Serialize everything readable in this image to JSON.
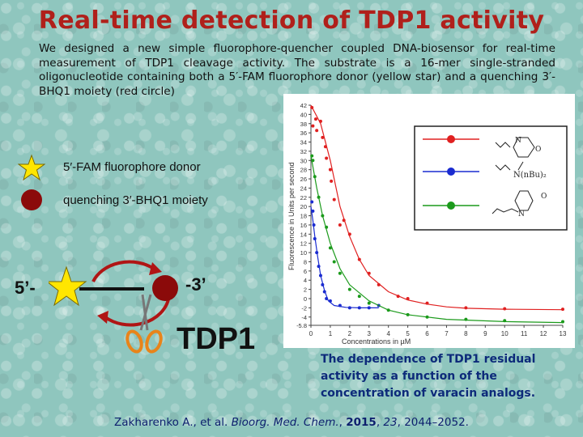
{
  "title": "Real-time detection of TDP1 activity",
  "intro": "We designed a new simple fluorophore-quencher coupled DNA-biosensor for real-time measurement of TDP1 cleavage activity. The substrate is a 16-mer single-stranded oligonucleotide containing both a 5′-FAM fluorophore donor (yellow star) and a quenching 3′-BHQ1 moiety (red circle)",
  "legend": {
    "donor_label": "5′-FAM fluorophore donor",
    "quencher_label": "quenching 3′-BHQ1 moiety"
  },
  "substrate": {
    "five_prime": "5’-",
    "three_prime": "-3’",
    "enzyme": "TDP1"
  },
  "structures": {
    "atom_n": "N",
    "atom_o": "O",
    "dibutyl": "N(nBu)₂"
  },
  "caption": "The dependence of TDP1 residual activity as a function of the concentration of varacin analogs.",
  "citation": {
    "authors": "Zakharenko A., et al. ",
    "journal": "Bioorg. Med. Chem.",
    "sep": ", ",
    "year": "2015",
    "sep2": ", ",
    "volume": "23",
    "pages": ", 2044–2052."
  },
  "colors": {
    "title": "#b0201b",
    "star": "#ffe600",
    "quencher": "#8b0a0a",
    "red_series": "#e02020",
    "blue_series": "#1a2bd0",
    "green_series": "#1b9a1b"
  },
  "chart_data": {
    "type": "scatter",
    "xlabel": "Concentrations in µM",
    "ylabel": "Fluorescence in Units per second",
    "xlim": [
      0,
      13
    ],
    "ylim": [
      -5.8,
      42
    ],
    "x_ticks": [
      "0",
      "1",
      "2",
      "3",
      "4",
      "5",
      "6",
      "7",
      "8",
      "9",
      "10",
      "11",
      "12",
      "13"
    ],
    "y_ticks": [
      "-5.8",
      "-4",
      "-2",
      "0",
      "2",
      "4",
      "6",
      "8",
      "10",
      "12",
      "14",
      "16",
      "18",
      "20",
      "22",
      "24",
      "26",
      "28",
      "30",
      "32",
      "34",
      "36",
      "38",
      "40",
      "42"
    ],
    "grid": false,
    "legend_position": "top-right",
    "series": [
      {
        "color": "#e02020",
        "points": [
          [
            0.05,
            41.5
          ],
          [
            0.1,
            37.5
          ],
          [
            0.25,
            39
          ],
          [
            0.3,
            36.5
          ],
          [
            0.5,
            38.5
          ],
          [
            0.6,
            35
          ],
          [
            0.75,
            33
          ],
          [
            0.8,
            30.5
          ],
          [
            1.0,
            28
          ],
          [
            1.05,
            25.5
          ],
          [
            1.2,
            21.5
          ],
          [
            1.5,
            16
          ],
          [
            1.7,
            17
          ],
          [
            2.0,
            14
          ],
          [
            2.5,
            8.5
          ],
          [
            3.0,
            5.5
          ],
          [
            3.5,
            3
          ],
          [
            4.5,
            0.5
          ],
          [
            5.0,
            0
          ],
          [
            6.0,
            -1
          ],
          [
            8.0,
            -2
          ],
          [
            10.0,
            -2.2
          ],
          [
            13.0,
            -2.3
          ]
        ],
        "fit": [
          [
            0,
            42
          ],
          [
            0.5,
            38
          ],
          [
            1,
            30
          ],
          [
            1.5,
            20
          ],
          [
            2,
            13.5
          ],
          [
            2.5,
            8.5
          ],
          [
            3,
            5
          ],
          [
            4,
            1.5
          ],
          [
            5,
            -0.3
          ],
          [
            6,
            -1.2
          ],
          [
            7,
            -1.8
          ],
          [
            8,
            -2.1
          ],
          [
            10,
            -2.3
          ],
          [
            13,
            -2.4
          ]
        ]
      },
      {
        "color": "#1a2bd0",
        "points": [
          [
            0.05,
            21
          ],
          [
            0.1,
            19
          ],
          [
            0.15,
            16
          ],
          [
            0.2,
            13
          ],
          [
            0.3,
            10
          ],
          [
            0.4,
            7
          ],
          [
            0.5,
            5
          ],
          [
            0.6,
            3
          ],
          [
            0.7,
            1.5
          ],
          [
            0.8,
            0
          ],
          [
            1.0,
            -0.5
          ],
          [
            1.5,
            -1.5
          ],
          [
            2.0,
            -2
          ],
          [
            2.5,
            -2
          ],
          [
            3.0,
            -2
          ],
          [
            3.5,
            -1.5
          ]
        ],
        "fit": [
          [
            0,
            20
          ],
          [
            0.1,
            17
          ],
          [
            0.2,
            13.5
          ],
          [
            0.35,
            9
          ],
          [
            0.5,
            5
          ],
          [
            0.7,
            1.8
          ],
          [
            0.9,
            -0.5
          ],
          [
            1.2,
            -1.5
          ],
          [
            1.8,
            -1.9
          ],
          [
            2.5,
            -2
          ],
          [
            3.5,
            -2
          ]
        ]
      },
      {
        "color": "#1b9a1b",
        "points": [
          [
            0.05,
            31
          ],
          [
            0.1,
            30
          ],
          [
            0.2,
            26.5
          ],
          [
            0.4,
            22
          ],
          [
            0.6,
            18
          ],
          [
            0.8,
            15.5
          ],
          [
            1.0,
            11
          ],
          [
            1.2,
            8
          ],
          [
            1.5,
            5.5
          ],
          [
            2.0,
            2
          ],
          [
            2.5,
            0.5
          ],
          [
            3.0,
            -1
          ],
          [
            4.0,
            -2.5
          ],
          [
            5.0,
            -3.5
          ],
          [
            6.0,
            -4
          ],
          [
            8.0,
            -4.5
          ],
          [
            10.0,
            -4.8
          ],
          [
            13.0,
            -5
          ]
        ],
        "fit": [
          [
            0,
            31
          ],
          [
            0.3,
            24
          ],
          [
            0.6,
            18
          ],
          [
            1,
            12
          ],
          [
            1.5,
            6.5
          ],
          [
            2,
            3
          ],
          [
            3,
            -0.5
          ],
          [
            4,
            -2.5
          ],
          [
            5,
            -3.5
          ],
          [
            7,
            -4.5
          ],
          [
            10,
            -5
          ],
          [
            13,
            -5.2
          ]
        ]
      }
    ]
  }
}
